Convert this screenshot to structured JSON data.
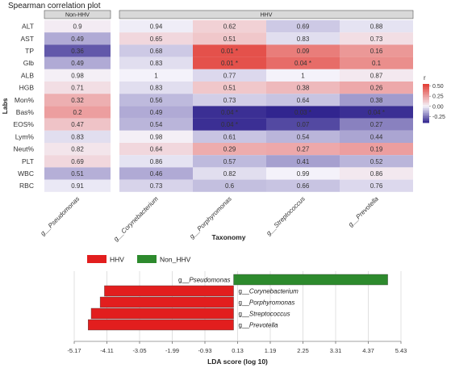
{
  "chart_data": [
    {
      "type": "heatmap",
      "title": "Spearman correlation plot",
      "panels": [
        {
          "label": "Non-HHV",
          "columns": [
            "g__Pseudomonas"
          ]
        },
        {
          "label": "HHV",
          "columns": [
            "g__Corynebacterium",
            "g__Porphyromonas",
            "g__Streptococcus",
            "g__Prevotella"
          ]
        }
      ],
      "rows": [
        "ALT",
        "AST",
        "TP",
        "Glb",
        "ALB",
        "HGB",
        "Mon%",
        "Bas%",
        "EOS%",
        "Lym%",
        "Neut%",
        "PLT",
        "WBC",
        "RBC"
      ],
      "ylabel": "Labs",
      "xlabel": "Taxonomy",
      "p_values": [
        [
          "0.9",
          "0.94",
          "0.62",
          "0.69",
          "0.88"
        ],
        [
          "0.49",
          "0.65",
          "0.51",
          "0.83",
          "0.73"
        ],
        [
          "0.36",
          "0.68",
          "0.01 *",
          "0.09",
          "0.16"
        ],
        [
          "0.49",
          "0.83",
          "0.01 *",
          "0.04 *",
          "0.1"
        ],
        [
          "0.98",
          "1",
          "0.77",
          "1",
          "0.87"
        ],
        [
          "0.71",
          "0.83",
          "0.51",
          "0.38",
          "0.26"
        ],
        [
          "0.32",
          "0.56",
          "0.73",
          "0.64",
          "0.38"
        ],
        [
          "0.2",
          "0.49",
          "0.04 *",
          "0.03 *",
          "0.04 *"
        ],
        [
          "0.47",
          "0.54",
          "0.04 *",
          "0.07",
          "0.27"
        ],
        [
          "0.83",
          "0.98",
          "0.61",
          "0.54",
          "0.44"
        ],
        [
          "0.82",
          "0.64",
          "0.29",
          "0.27",
          "0.19"
        ],
        [
          "0.69",
          "0.86",
          "0.57",
          "0.41",
          "0.52"
        ],
        [
          "0.51",
          "0.46",
          "0.82",
          "0.99",
          "0.86"
        ],
        [
          "0.91",
          "0.73",
          "0.6",
          "0.66",
          "0.76"
        ]
      ],
      "r_values": [
        [
          0.02,
          -0.01,
          0.1,
          -0.08,
          -0.03
        ],
        [
          -0.14,
          0.08,
          0.13,
          -0.04,
          0.06
        ],
        [
          -0.3,
          -0.08,
          0.48,
          0.35,
          0.27
        ],
        [
          -0.14,
          -0.04,
          0.48,
          0.4,
          0.3
        ],
        [
          0.01,
          0.0,
          -0.05,
          0.0,
          0.03
        ],
        [
          0.06,
          -0.04,
          0.13,
          0.17,
          0.22
        ],
        [
          0.2,
          -0.11,
          -0.07,
          -0.09,
          -0.17
        ],
        [
          0.25,
          -0.14,
          -0.38,
          -0.4,
          -0.38
        ],
        [
          0.14,
          -0.12,
          -0.38,
          -0.33,
          -0.22
        ],
        [
          -0.04,
          0.01,
          -0.09,
          -0.12,
          -0.15
        ],
        [
          0.04,
          0.08,
          0.21,
          0.22,
          0.25
        ],
        [
          0.08,
          -0.03,
          -0.11,
          -0.16,
          -0.12
        ],
        [
          -0.13,
          -0.14,
          -0.04,
          0.0,
          0.03
        ],
        [
          -0.02,
          -0.06,
          -0.1,
          -0.09,
          -0.05
        ]
      ],
      "color_scale": {
        "label": "r",
        "ticks": [
          "0.50",
          "0.25",
          "0.00",
          "-0.25"
        ],
        "range": [
          -0.4,
          0.55
        ],
        "colors": {
          "low": "#31258f",
          "mid": "#f4f2fa",
          "high": "#e23a31"
        }
      }
    },
    {
      "type": "bar",
      "orientation": "horizontal",
      "legend": [
        {
          "name": "HHV",
          "color": "#e21e1e"
        },
        {
          "name": "Non_HHV",
          "color": "#2d8a2d"
        }
      ],
      "categories": [
        "g__Pseudomonas",
        "g__Corynebacterium",
        "g__Porphyromonas",
        "g__Streptococcus",
        "g__Prevotella"
      ],
      "groups": [
        "Non_HHV",
        "HHV",
        "HHV",
        "HHV",
        "HHV"
      ],
      "values": [
        5.0,
        -4.19,
        -4.33,
        -4.62,
        -4.72
      ],
      "xlabel": "LDA score (log 10)",
      "xticks": [
        "-5.17",
        "-4.11",
        "-3.05",
        "-1.99",
        "-0.93",
        "0.13",
        "1.19",
        "2.25",
        "3.31",
        "4.37",
        "5.43"
      ],
      "xlim": [
        -5.17,
        5.43
      ]
    }
  ]
}
